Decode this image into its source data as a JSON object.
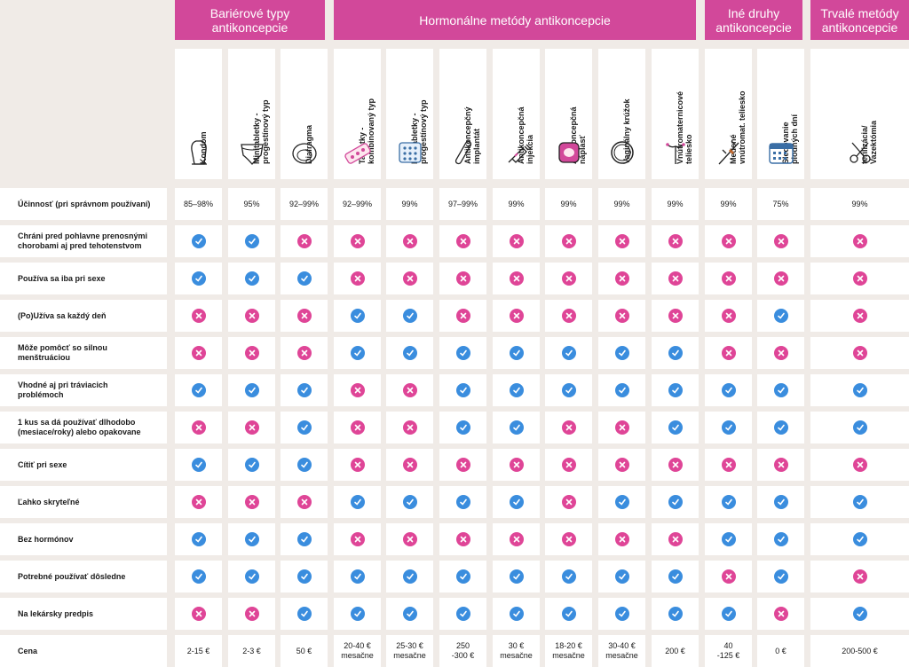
{
  "groups": [
    {
      "label": "Bariérové typy\nantikoncepcie"
    },
    {
      "label": "Hormonálne metódy antikoncepcie"
    },
    {
      "label": "Iné druhy\nantikoncepcie"
    },
    {
      "label": "Trvalé metódy\nantikoncepcie"
    }
  ],
  "methods": [
    {
      "label": "Kondóm",
      "icon": "condom-icon"
    },
    {
      "label": "Minitabletky -\nprogestínový typ",
      "icon": "underwear-icon"
    },
    {
      "label": "Diafragma",
      "icon": "diaphragm-icon"
    },
    {
      "label": "Tabletky -\nkombinovaný typ",
      "icon": "pill-strip-icon"
    },
    {
      "label": "Minitabletky -\nprogestínový typ",
      "icon": "pill-pack-icon"
    },
    {
      "label": "Antikoncepčný\nimplantát",
      "icon": "implant-icon"
    },
    {
      "label": "Antikoncepčná\ninjekcia",
      "icon": "syringe-icon"
    },
    {
      "label": "Antikoncepčná\nnáplasť",
      "icon": "patch-icon"
    },
    {
      "label": "Vaginálny krúžok",
      "icon": "ring-icon"
    },
    {
      "label": "Vnútromaternicové\nteliesko",
      "icon": "iud-icon"
    },
    {
      "label": "Medené\nvnútromat. teliesko",
      "icon": "copper-iud-icon"
    },
    {
      "label": "Sledovanie\nplodných dní",
      "icon": "calendar-icon"
    },
    {
      "label": "terilizácia/\nVazektómia",
      "icon": "scissors-icon"
    }
  ],
  "rows": [
    {
      "label": "Účinnosť (pri správnom používaní)",
      "kind": "text",
      "values": [
        "85–98%",
        "95%",
        "92–99%",
        "92–99%",
        "99%",
        "97–99%",
        "99%",
        "99%",
        "99%",
        "99%",
        "99%",
        "75%",
        "99%"
      ]
    },
    {
      "label": "Chráni pred pohlavne prenosnými\nchorobami aj pred tehotenstvom",
      "kind": "mark",
      "values": [
        "yes",
        "yes",
        "no",
        "no",
        "no",
        "no",
        "no",
        "no",
        "no",
        "no",
        "no",
        "no",
        "no"
      ]
    },
    {
      "label": "Používa sa iba pri sexe",
      "kind": "mark",
      "values": [
        "yes",
        "yes",
        "yes",
        "no",
        "no",
        "no",
        "no",
        "no",
        "no",
        "no",
        "no",
        "no",
        "no"
      ]
    },
    {
      "label": "(Po)Užíva sa každý deň",
      "kind": "mark",
      "values": [
        "no",
        "no",
        "no",
        "yes",
        "yes",
        "no",
        "no",
        "no",
        "no",
        "no",
        "no",
        "yes",
        "no"
      ]
    },
    {
      "label": "Môže pomôcť so silnou\nmenštruáciou",
      "kind": "mark",
      "values": [
        "no",
        "no",
        "no",
        "yes",
        "yes",
        "yes",
        "yes",
        "yes",
        "yes",
        "yes",
        "no",
        "no",
        "no"
      ]
    },
    {
      "label": "Vhodné aj pri tráviacich\nproblémoch",
      "kind": "mark",
      "values": [
        "yes",
        "yes",
        "yes",
        "no",
        "no",
        "yes",
        "yes",
        "yes",
        "yes",
        "yes",
        "yes",
        "yes",
        "yes"
      ]
    },
    {
      "label": "1 kus sa dá používať dlhodobo\n(mesiace/roky) alebo opakovane",
      "kind": "mark",
      "values": [
        "no",
        "no",
        "yes",
        "no",
        "no",
        "yes",
        "yes",
        "no",
        "no",
        "yes",
        "yes",
        "yes",
        "yes"
      ]
    },
    {
      "label": "Cítiť pri sexe",
      "kind": "mark",
      "values": [
        "yes",
        "yes",
        "yes",
        "no",
        "no",
        "no",
        "no",
        "no",
        "no",
        "no",
        "no",
        "no",
        "no"
      ]
    },
    {
      "label": "Ľahko skryteľné",
      "kind": "mark",
      "values": [
        "no",
        "no",
        "no",
        "yes",
        "yes",
        "yes",
        "yes",
        "no",
        "yes",
        "yes",
        "yes",
        "yes",
        "yes"
      ]
    },
    {
      "label": "Bez hormónov",
      "kind": "mark",
      "values": [
        "yes",
        "yes",
        "yes",
        "no",
        "no",
        "no",
        "no",
        "no",
        "no",
        "no",
        "yes",
        "yes",
        "yes"
      ]
    },
    {
      "label": "Potrebné používať dôsledne",
      "kind": "mark",
      "values": [
        "yes",
        "yes",
        "yes",
        "yes",
        "yes",
        "yes",
        "yes",
        "yes",
        "yes",
        "yes",
        "no",
        "yes",
        "no"
      ]
    },
    {
      "label": "Na lekársky predpis",
      "kind": "mark",
      "values": [
        "no",
        "no",
        "yes",
        "yes",
        "yes",
        "yes",
        "yes",
        "yes",
        "yes",
        "yes",
        "yes",
        "no",
        "yes"
      ]
    },
    {
      "label": "Cena",
      "kind": "text",
      "values": [
        "2-15 €",
        "2-3 €",
        "50 €",
        "20-40 €\nmesačne",
        "25-30 €\nmesačne",
        "250\n-300 €",
        "30 €\nmesačne",
        "18-20 €\nmesačne",
        "30-40 €\nmesačne",
        "200 €",
        "40\n-125 €",
        "0 €",
        "200-500 €"
      ]
    }
  ],
  "colors": {
    "accent": "#d2489a",
    "yes": "#3a8dde",
    "no": "#df4597",
    "background": "#f0ebe7"
  }
}
